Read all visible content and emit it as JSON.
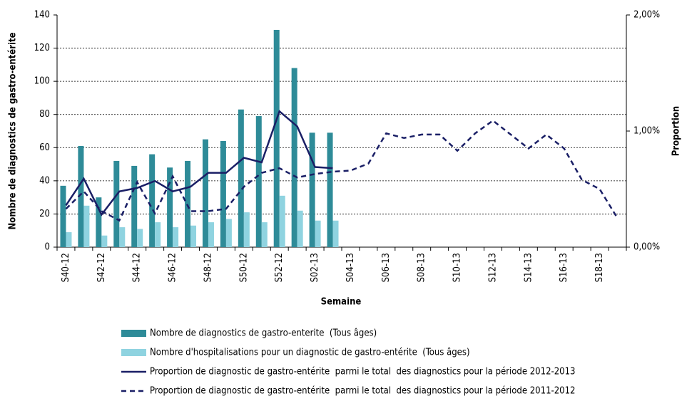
{
  "chart_data": {
    "type": "bar",
    "y_label": "Nombre de diagnostics de gastro-entérite",
    "y2_label": "Proportion",
    "x_label": "Semaine",
    "categories": [
      "S40-12",
      null,
      "S42-12",
      null,
      "S44-12",
      null,
      "S46-12",
      null,
      "S48-12",
      null,
      "S50-12",
      null,
      "S52-12",
      null,
      "S02-13",
      null,
      "S04-13",
      null,
      "S06-13",
      null,
      "S08-13",
      null,
      "S10-13",
      null,
      "S12-13",
      null,
      "S14-13",
      null,
      "S16-13",
      null,
      "S18-13",
      null
    ],
    "ylim": [
      0,
      140
    ],
    "yticks": [
      0,
      20,
      40,
      60,
      80,
      100,
      120,
      140
    ],
    "y2lim": [
      0,
      2
    ],
    "y2ticks": [
      {
        "value": 0,
        "label": "0,00%"
      },
      {
        "value": 1,
        "label": "1,00%"
      },
      {
        "value": 2,
        "label": "2,00%"
      }
    ],
    "grid": true,
    "series": [
      {
        "name": "Nombre de diagnostics de gastro-enterite  (Tous âges)",
        "type": "bar",
        "color": "#2e8b98",
        "values": [
          37,
          61,
          30,
          52,
          49,
          56,
          48,
          52,
          65,
          64,
          83,
          79,
          131,
          108,
          69,
          69,
          null,
          null,
          null,
          null,
          null,
          null,
          null,
          null,
          null,
          null,
          null,
          null,
          null,
          null,
          null,
          null
        ]
      },
      {
        "name": "Nombre d'hospitalisations pour un diagnostic de gastro-entérite  (Tous âges)",
        "type": "bar",
        "color": "#8fd3e0",
        "values": [
          9,
          25,
          7,
          12,
          11,
          15,
          12,
          13,
          15,
          17,
          21,
          15,
          31,
          22,
          16,
          16,
          null,
          null,
          null,
          null,
          null,
          null,
          null,
          null,
          null,
          null,
          null,
          null,
          null,
          null,
          null,
          null
        ]
      },
      {
        "name": "Proportion de diagnostic de gastro-entérite  parmi le total  des diagnostics pour la période 2012-2013",
        "type": "line",
        "axis": "y2",
        "color": "#1a1f66",
        "dashed": false,
        "values": [
          0.36,
          0.59,
          0.28,
          0.48,
          0.51,
          0.57,
          0.48,
          0.52,
          0.64,
          0.64,
          0.77,
          0.73,
          1.17,
          1.04,
          0.69,
          0.68,
          null,
          null,
          null,
          null,
          null,
          null,
          null,
          null,
          null,
          null,
          null,
          null,
          null,
          null,
          null,
          null
        ]
      },
      {
        "name": "Proportion de diagnostic de gastro-entérite  parmi le total  des diagnostics pour la période 2011-2012",
        "type": "line",
        "axis": "y2",
        "color": "#1a1f66",
        "dashed": true,
        "values": [
          0.33,
          0.48,
          0.31,
          0.23,
          0.56,
          0.29,
          0.61,
          0.31,
          0.31,
          0.33,
          0.52,
          0.64,
          0.68,
          0.6,
          0.63,
          0.65,
          0.66,
          0.72,
          0.98,
          0.94,
          0.97,
          0.97,
          0.83,
          0.98,
          1.09,
          0.97,
          0.85,
          0.97,
          0.85,
          0.58,
          0.5,
          0.25
        ]
      }
    ]
  }
}
